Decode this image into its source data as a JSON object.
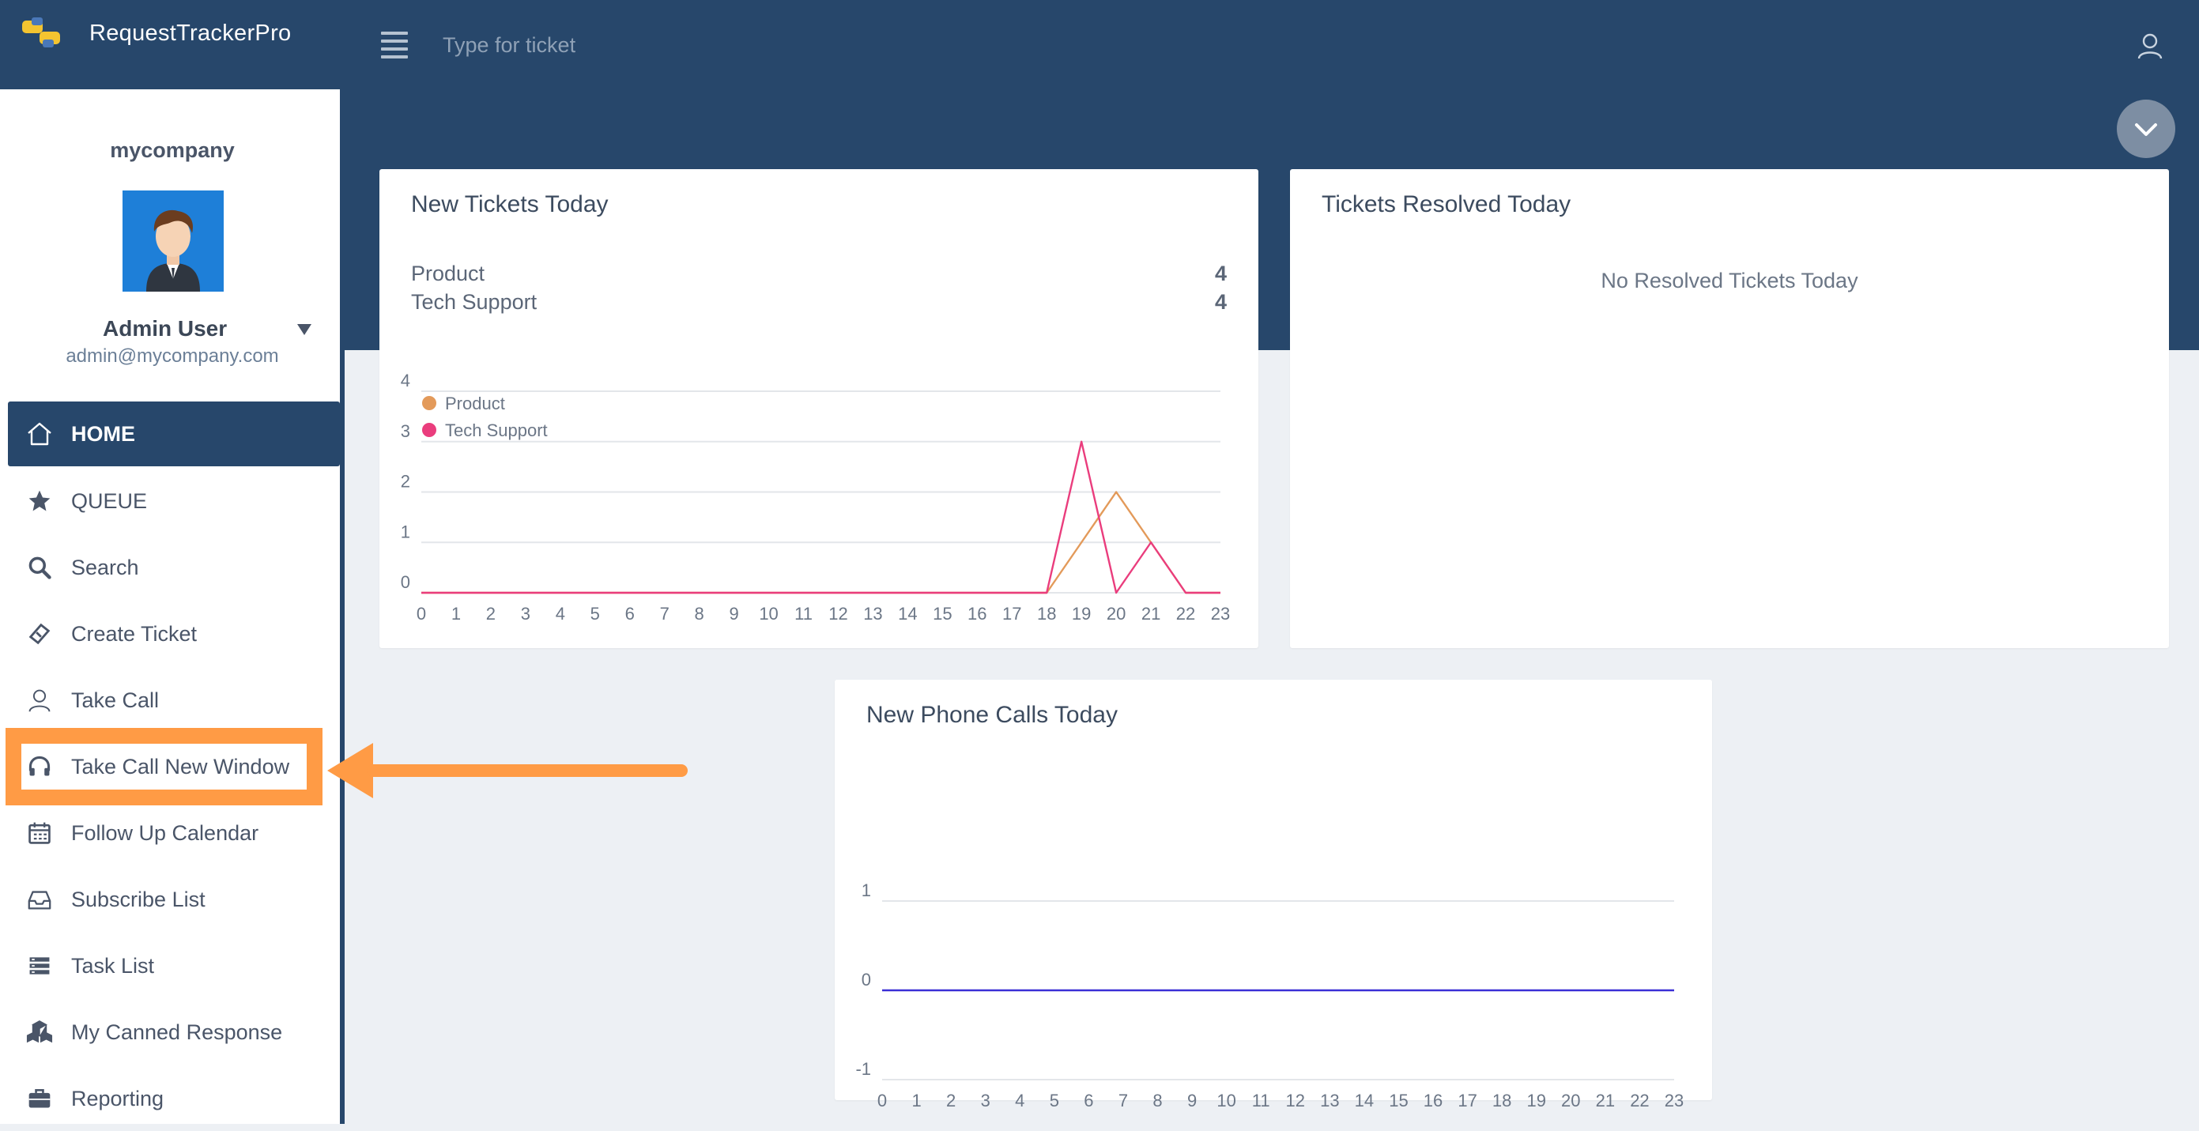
{
  "header": {
    "app_title": "RequestTrackerPro",
    "search_placeholder": "Type for ticket"
  },
  "sidebar": {
    "company": "mycompany",
    "user_name": "Admin User",
    "user_email": "admin@mycompany.com",
    "items": [
      {
        "label": "HOME",
        "icon": "home-icon",
        "active": true
      },
      {
        "label": "QUEUE",
        "icon": "star-icon"
      },
      {
        "label": "Search",
        "icon": "search-icon"
      },
      {
        "label": "Create Ticket",
        "icon": "ticket-icon"
      },
      {
        "label": "Take Call",
        "icon": "user-icon"
      },
      {
        "label": "Take Call New Window",
        "icon": "headphones-icon",
        "highlighted": true
      },
      {
        "label": "Follow Up Calendar",
        "icon": "calendar-icon"
      },
      {
        "label": "Subscribe List",
        "icon": "inbox-icon"
      },
      {
        "label": "Task List",
        "icon": "list-icon"
      },
      {
        "label": "My Canned Response",
        "icon": "cubes-icon"
      },
      {
        "label": "Reporting",
        "icon": "briefcase-icon"
      }
    ]
  },
  "colors": {
    "primary": "#27476b",
    "highlight": "#ff9b45",
    "product_series": "#e39a5a",
    "tech_support_series": "#ea3d7d",
    "phone_series": "#3a2fd6"
  },
  "new_tickets": {
    "title": "New Tickets Today",
    "stats": [
      {
        "label": "Product",
        "value": "4"
      },
      {
        "label": "Tech Support",
        "value": "4"
      }
    ]
  },
  "resolved": {
    "title": "Tickets Resolved Today",
    "empty_message": "No Resolved Tickets Today"
  },
  "phone_calls": {
    "title": "New Phone Calls Today"
  },
  "chart_data": [
    {
      "type": "line",
      "x": [
        0,
        1,
        2,
        3,
        4,
        5,
        6,
        7,
        8,
        9,
        10,
        11,
        12,
        13,
        14,
        15,
        16,
        17,
        18,
        19,
        20,
        21,
        22,
        23
      ],
      "ylim": [
        0,
        4
      ],
      "yticks": [
        0,
        1,
        2,
        3,
        4
      ],
      "grid": true,
      "legend": "top-left",
      "series": [
        {
          "name": "Product",
          "values": [
            0,
            0,
            0,
            0,
            0,
            0,
            0,
            0,
            0,
            0,
            0,
            0,
            0,
            0,
            0,
            0,
            0,
            0,
            0,
            1,
            2,
            1,
            0,
            0
          ]
        },
        {
          "name": "Tech Support",
          "values": [
            0,
            0,
            0,
            0,
            0,
            0,
            0,
            0,
            0,
            0,
            0,
            0,
            0,
            0,
            0,
            0,
            0,
            0,
            0,
            3,
            0,
            1,
            0,
            0
          ]
        }
      ]
    },
    {
      "type": "line",
      "x": [
        0,
        1,
        2,
        3,
        4,
        5,
        6,
        7,
        8,
        9,
        10,
        11,
        12,
        13,
        14,
        15,
        16,
        17,
        18,
        19,
        20,
        21,
        22,
        23
      ],
      "ylim": [
        -1,
        1
      ],
      "yticks": [
        -1,
        0,
        1
      ],
      "grid": true,
      "series": [
        {
          "values": [
            0,
            0,
            0,
            0,
            0,
            0,
            0,
            0,
            0,
            0,
            0,
            0,
            0,
            0,
            0,
            0,
            0,
            0,
            0,
            0,
            0,
            0,
            0,
            0
          ]
        }
      ]
    }
  ]
}
